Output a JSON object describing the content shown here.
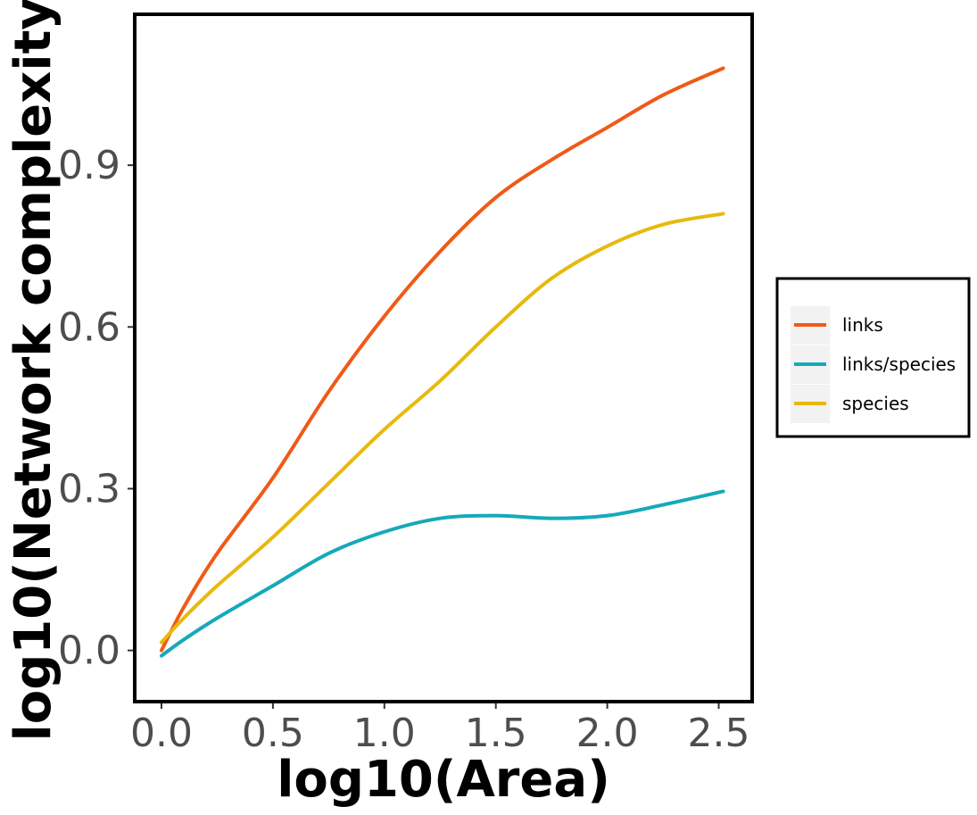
{
  "chart_data": {
    "type": "line",
    "xlabel": "log10(Area)",
    "ylabel": "log10(Network complexity)",
    "xlim": [
      -0.12,
      2.65
    ],
    "ylim": [
      -0.095,
      1.18
    ],
    "x_ticks": [
      0.0,
      0.5,
      1.0,
      1.5,
      2.0,
      2.5
    ],
    "x_tick_labels": [
      "0.0",
      "0.5",
      "1.0",
      "1.5",
      "2.0",
      "2.5"
    ],
    "y_ticks": [
      0.0,
      0.3,
      0.6,
      0.9
    ],
    "y_tick_labels": [
      "0.0",
      "0.3",
      "0.6",
      "0.9"
    ],
    "grid": false,
    "legend_position": "right",
    "series": [
      {
        "name": "links",
        "color": "#f05a17",
        "points": [
          [
            0.0,
            0.0
          ],
          [
            0.1,
            0.08
          ],
          [
            0.25,
            0.18
          ],
          [
            0.5,
            0.32
          ],
          [
            0.75,
            0.48
          ],
          [
            1.0,
            0.62
          ],
          [
            1.25,
            0.74
          ],
          [
            1.5,
            0.84
          ],
          [
            1.75,
            0.91
          ],
          [
            2.0,
            0.97
          ],
          [
            2.25,
            1.03
          ],
          [
            2.52,
            1.08
          ]
        ]
      },
      {
        "name": "links/species",
        "color": "#16a9b9",
        "points": [
          [
            0.0,
            -0.01
          ],
          [
            0.1,
            0.02
          ],
          [
            0.25,
            0.06
          ],
          [
            0.5,
            0.12
          ],
          [
            0.75,
            0.18
          ],
          [
            1.0,
            0.22
          ],
          [
            1.25,
            0.245
          ],
          [
            1.5,
            0.25
          ],
          [
            1.75,
            0.245
          ],
          [
            2.0,
            0.25
          ],
          [
            2.25,
            0.27
          ],
          [
            2.52,
            0.295
          ]
        ]
      },
      {
        "name": "species",
        "color": "#e8b90e",
        "points": [
          [
            0.0,
            0.015
          ],
          [
            0.1,
            0.06
          ],
          [
            0.25,
            0.12
          ],
          [
            0.5,
            0.21
          ],
          [
            0.75,
            0.31
          ],
          [
            1.0,
            0.41
          ],
          [
            1.25,
            0.5
          ],
          [
            1.5,
            0.6
          ],
          [
            1.75,
            0.69
          ],
          [
            2.0,
            0.75
          ],
          [
            2.25,
            0.79
          ],
          [
            2.52,
            0.81
          ]
        ]
      }
    ]
  }
}
